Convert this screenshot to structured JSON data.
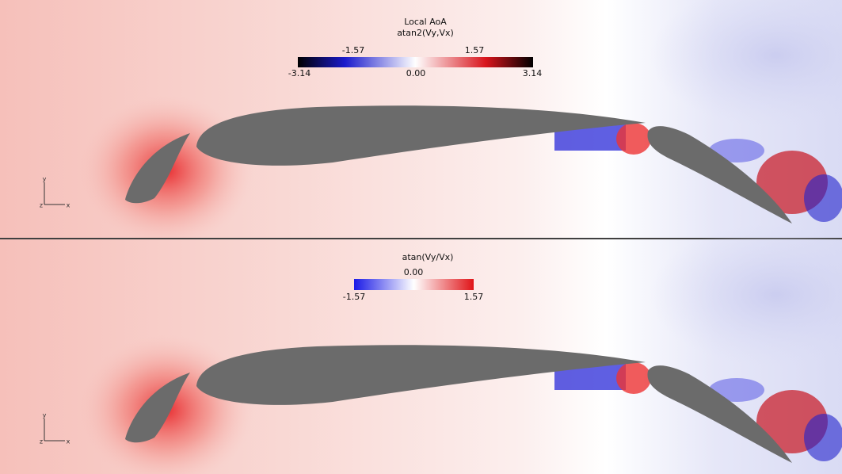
{
  "panels": [
    {
      "title": [
        "Local AoA",
        "atan2(Vy,Vx)"
      ],
      "colorbar": {
        "labels_above": [
          "-1.57",
          "1.57"
        ],
        "labels_below": [
          "-3.14",
          "0.00",
          "3.14"
        ]
      },
      "axes": [
        "y",
        "z",
        "x"
      ]
    },
    {
      "title": [
        "atan(Vy/Vx)"
      ],
      "colorbar": {
        "labels_above": [
          "0.00"
        ],
        "labels_below": [
          "-1.57",
          "1.57"
        ]
      },
      "axes": [
        "y",
        "z",
        "x"
      ]
    }
  ]
}
